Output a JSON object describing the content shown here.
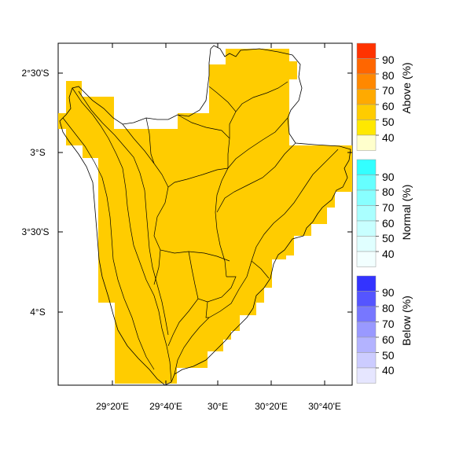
{
  "map": {
    "fill_color": "#ffcc00",
    "outline_color": "#000000",
    "background": "#ffffff",
    "lat_ticks": [
      "2°30'S",
      "3°S",
      "3°30'S",
      "4°S"
    ],
    "lon_ticks": [
      "29°20'E",
      "29°40'E",
      "30°E",
      "30°20'E",
      "30°40'E"
    ]
  },
  "legends": [
    {
      "title": "Above (%)",
      "labels": [
        "90",
        "80",
        "70",
        "60",
        "50",
        "40"
      ],
      "colors": [
        "#ff3300",
        "#ff6600",
        "#ff8800",
        "#ffaa00",
        "#ffcc00",
        "#ffe800",
        "#ffffcc"
      ]
    },
    {
      "title": "Normal (%)",
      "labels": [
        "90",
        "80",
        "70",
        "60",
        "50",
        "40"
      ],
      "colors": [
        "#33ffff",
        "#66ffff",
        "#88ffff",
        "#aaffff",
        "#c8ffff",
        "#e0ffff",
        "#f2ffff"
      ]
    },
    {
      "title": "Below (%)",
      "labels": [
        "90",
        "80",
        "70",
        "60",
        "50",
        "40"
      ],
      "colors": [
        "#3333ff",
        "#5555ff",
        "#7777ff",
        "#9999ff",
        "#b3b3ff",
        "#ccccff",
        "#e6e6ff"
      ]
    }
  ]
}
